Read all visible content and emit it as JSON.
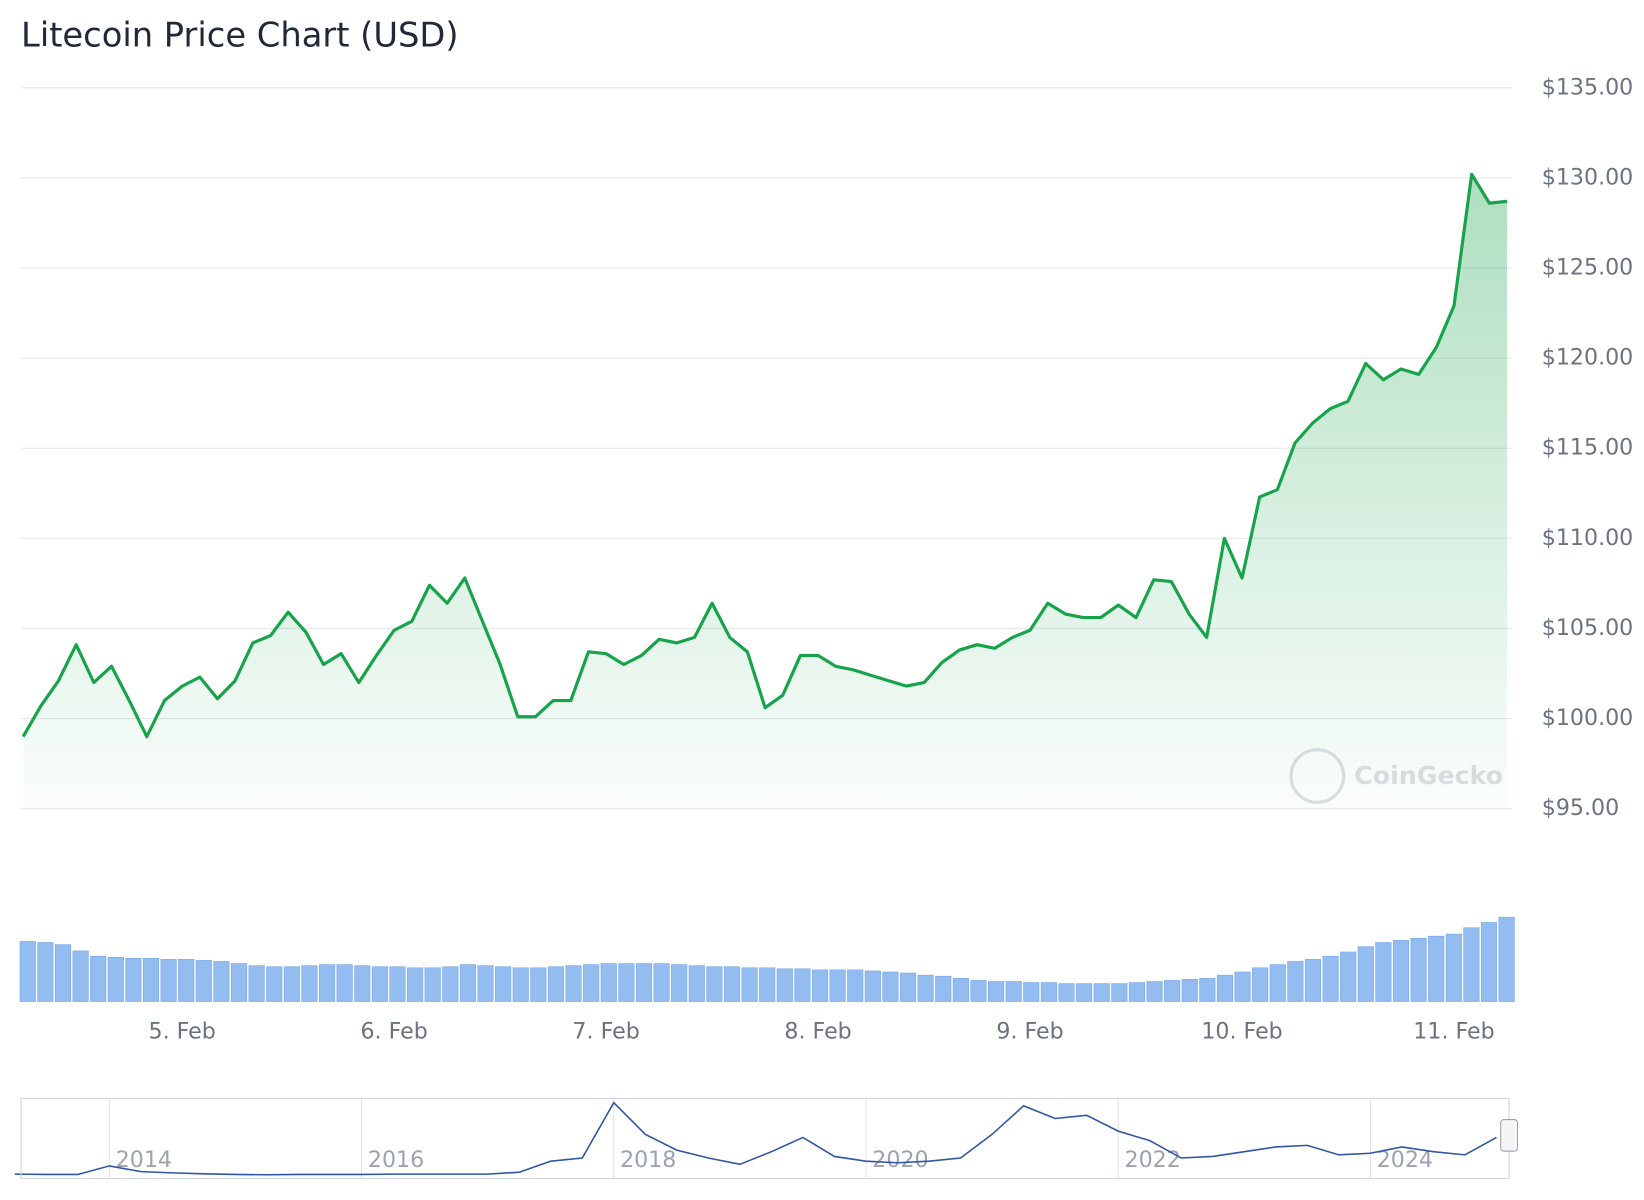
{
  "chart_data": [
    {
      "type": "line",
      "title": "Litecoin Price Chart (USD)",
      "watermark": "CoinGecko",
      "color": "#16a34a",
      "values": [
        99.0,
        100.7,
        102.1,
        104.1,
        102.0,
        102.9,
        101.0,
        99.0,
        101.0,
        101.8,
        102.3,
        101.1,
        102.1,
        104.2,
        104.6,
        105.9,
        104.8,
        103.0,
        103.6,
        102.0,
        103.5,
        104.9,
        105.4,
        107.4,
        106.4,
        107.8,
        105.4,
        103.0,
        100.1,
        100.1,
        101.0,
        101.0,
        103.7,
        103.6,
        103.0,
        103.5,
        104.4,
        104.2,
        104.5,
        106.4,
        104.5,
        103.7,
        100.6,
        101.3,
        103.5,
        103.5,
        102.9,
        102.7,
        102.4,
        102.1,
        101.8,
        102.0,
        103.1,
        103.8,
        104.1,
        103.9,
        104.5,
        104.9,
        106.4,
        105.8,
        105.6,
        105.6,
        106.3,
        105.6,
        107.7,
        107.6,
        105.8,
        104.5,
        110.0,
        107.8,
        112.3,
        112.7,
        115.3,
        116.4,
        117.2,
        117.6,
        119.7,
        118.8,
        119.4,
        119.1,
        120.6,
        122.9,
        130.2,
        128.6,
        128.7
      ],
      "ylim": [
        95,
        135
      ],
      "yticks": [
        {
          "value": 95,
          "label": "$95.00"
        },
        {
          "value": 100,
          "label": "$100.00"
        },
        {
          "value": 105,
          "label": "$105.00"
        },
        {
          "value": 110,
          "label": "$110.00"
        },
        {
          "value": 115,
          "label": "$115.00"
        },
        {
          "value": 120,
          "label": "$120.00"
        },
        {
          "value": 125,
          "label": "$125.00"
        },
        {
          "value": 130,
          "label": "$130.00"
        },
        {
          "value": 135,
          "label": "$135.00"
        }
      ],
      "xticks": [
        {
          "value": 9,
          "label": "5. Feb"
        },
        {
          "value": 21,
          "label": "6. Feb"
        },
        {
          "value": 33,
          "label": "7. Feb"
        },
        {
          "value": 45,
          "label": "8. Feb"
        },
        {
          "value": 57,
          "label": "9. Feb"
        },
        {
          "value": 69,
          "label": "10. Feb"
        },
        {
          "value": 81,
          "label": "11. Feb"
        }
      ],
      "grid": true
    },
    {
      "type": "bar",
      "color": "#93bdf0",
      "values": [
        57,
        56,
        54,
        48,
        43,
        42,
        41,
        41,
        40,
        40,
        39,
        38,
        36,
        34,
        33,
        33,
        34,
        35,
        35,
        34,
        33,
        33,
        32,
        32,
        33,
        35,
        34,
        33,
        32,
        32,
        33,
        34,
        35,
        36,
        36,
        36,
        36,
        35,
        34,
        33,
        33,
        32,
        32,
        31,
        31,
        30,
        30,
        30,
        29,
        28,
        27,
        25,
        24,
        22,
        20,
        19,
        19,
        18,
        18,
        17,
        17,
        17,
        17,
        18,
        19,
        20,
        21,
        22,
        25,
        28,
        32,
        35,
        38,
        40,
        43,
        47,
        52,
        56,
        58,
        60,
        62,
        64,
        70,
        75,
        80
      ]
    },
    {
      "type": "navigator",
      "color": "#2f55a4",
      "x": [
        2013.25,
        2013.5,
        2013.75,
        2014,
        2014.25,
        2014.5,
        2014.75,
        2015,
        2015.25,
        2015.5,
        2015.75,
        2016,
        2016.25,
        2016.5,
        2016.75,
        2017,
        2017.25,
        2017.5,
        2017.75,
        2018,
        2018.25,
        2018.5,
        2018.75,
        2019,
        2019.25,
        2019.5,
        2019.75,
        2020,
        2020.25,
        2020.5,
        2020.75,
        2021,
        2021.25,
        2021.5,
        2021.75,
        2022,
        2022.25,
        2022.5,
        2022.75,
        2023,
        2023.25,
        2023.5,
        2023.75,
        2024,
        2024.25,
        2024.5,
        2024.75,
        2025
      ],
      "values": [
        4,
        3,
        3,
        30,
        12,
        8,
        5,
        3,
        2,
        3,
        3,
        3,
        4,
        4,
        4,
        4,
        10,
        45,
        55,
        230,
        130,
        80,
        55,
        35,
        75,
        120,
        60,
        45,
        40,
        45,
        55,
        130,
        220,
        180,
        190,
        140,
        110,
        55,
        60,
        75,
        90,
        95,
        65,
        70,
        90,
        75,
        65,
        120
      ],
      "xlim": [
        2013.3,
        2025.1
      ],
      "xticks": [
        2014,
        2016,
        2018,
        2020,
        2022,
        2024
      ]
    }
  ]
}
